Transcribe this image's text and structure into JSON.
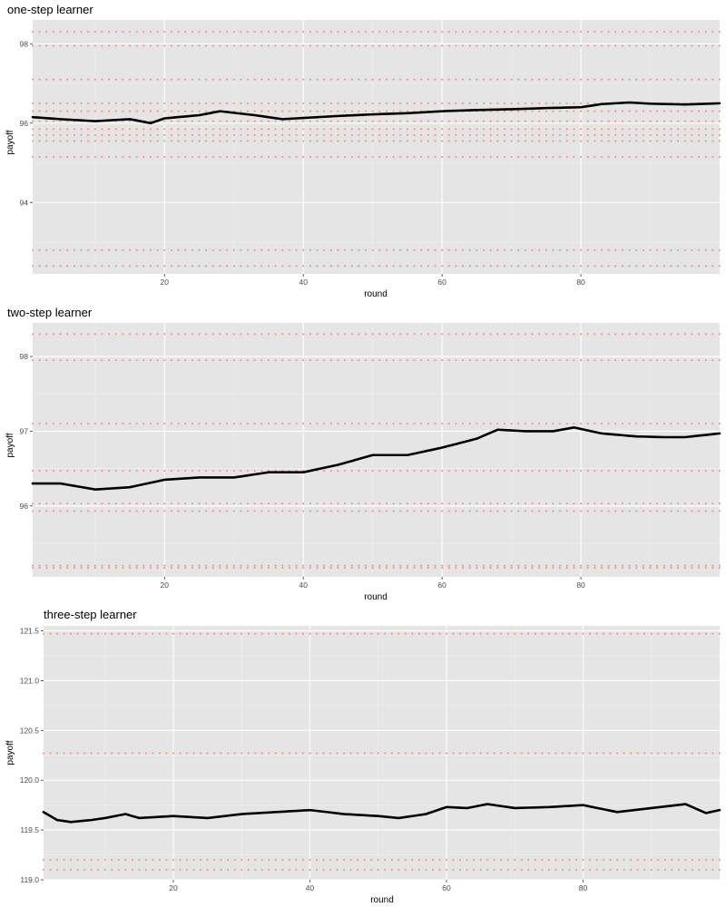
{
  "colors": {
    "panel_background": "#e5e5e5",
    "gridline_major": "#ffffff",
    "gridline_minor": "#f0f0f0",
    "line": "#000000",
    "points": "#f8766d"
  },
  "chart_data": [
    {
      "type": "line",
      "title": "one-step learner",
      "xlabel": "round",
      "ylabel": "payoff",
      "xlim": [
        1,
        100
      ],
      "ylim": [
        92.2,
        98.6
      ],
      "xticks": [
        20,
        40,
        60,
        80
      ],
      "yticks": [
        94,
        96,
        98
      ],
      "ytick_labels": [
        "94",
        "96",
        "98"
      ],
      "grid": true,
      "point_levels": [
        98.3,
        97.95,
        97.1,
        96.5,
        96.3,
        96.05,
        95.85,
        95.7,
        95.55,
        95.15,
        92.8,
        92.4
      ],
      "line_keypoints": {
        "x": [
          1,
          5,
          10,
          15,
          18,
          20,
          25,
          28,
          33,
          37,
          40,
          45,
          50,
          55,
          60,
          65,
          70,
          75,
          80,
          83,
          87,
          90,
          95,
          100
        ],
        "y": [
          96.15,
          96.1,
          96.05,
          96.1,
          96.0,
          96.12,
          96.2,
          96.3,
          96.2,
          96.1,
          96.13,
          96.18,
          96.22,
          96.25,
          96.3,
          96.33,
          96.35,
          96.38,
          96.4,
          96.48,
          96.52,
          96.49,
          96.47,
          96.5
        ]
      }
    },
    {
      "type": "line",
      "title": "two-step learner",
      "xlabel": "round",
      "ylabel": "payoff",
      "xlim": [
        1,
        100
      ],
      "ylim": [
        95.05,
        98.45
      ],
      "xticks": [
        20,
        40,
        60,
        80
      ],
      "yticks": [
        96,
        97,
        98
      ],
      "ytick_labels": [
        "96",
        "97",
        "98"
      ],
      "grid": true,
      "point_levels": [
        98.3,
        97.95,
        97.1,
        96.47,
        96.03,
        95.93,
        95.2,
        95.17
      ],
      "line_keypoints": {
        "x": [
          1,
          5,
          10,
          15,
          20,
          25,
          30,
          35,
          40,
          45,
          50,
          55,
          60,
          65,
          68,
          72,
          76,
          79,
          83,
          88,
          92,
          95,
          100
        ],
        "y": [
          96.3,
          96.3,
          96.22,
          96.25,
          96.35,
          96.38,
          96.38,
          96.45,
          96.45,
          96.55,
          96.68,
          96.68,
          96.78,
          96.9,
          97.02,
          97.0,
          97.0,
          97.05,
          96.97,
          96.93,
          96.92,
          96.92,
          96.97
        ]
      }
    },
    {
      "type": "line",
      "title": "three-step learner",
      "xlabel": "round",
      "ylabel": "payoff",
      "xlim": [
        1,
        100
      ],
      "ylim": [
        119.0,
        121.55
      ],
      "xticks": [
        20,
        40,
        60,
        80
      ],
      "yticks": [
        119.0,
        119.5,
        120.0,
        120.5,
        121.0,
        121.5
      ],
      "ytick_labels": [
        "119.0",
        "119.5",
        "120.0",
        "120.5",
        "121.0",
        "121.5"
      ],
      "grid": true,
      "point_levels": [
        121.47,
        120.27,
        119.2,
        119.1
      ],
      "line_keypoints": {
        "x": [
          1,
          3,
          5,
          8,
          10,
          13,
          15,
          20,
          25,
          30,
          35,
          40,
          45,
          50,
          53,
          57,
          60,
          63,
          66,
          70,
          75,
          80,
          85,
          90,
          95,
          98,
          100
        ],
        "y": [
          119.68,
          119.6,
          119.58,
          119.6,
          119.62,
          119.66,
          119.62,
          119.64,
          119.62,
          119.66,
          119.68,
          119.7,
          119.66,
          119.64,
          119.62,
          119.66,
          119.73,
          119.72,
          119.76,
          119.72,
          119.73,
          119.75,
          119.68,
          119.72,
          119.76,
          119.67,
          119.7
        ]
      }
    }
  ]
}
